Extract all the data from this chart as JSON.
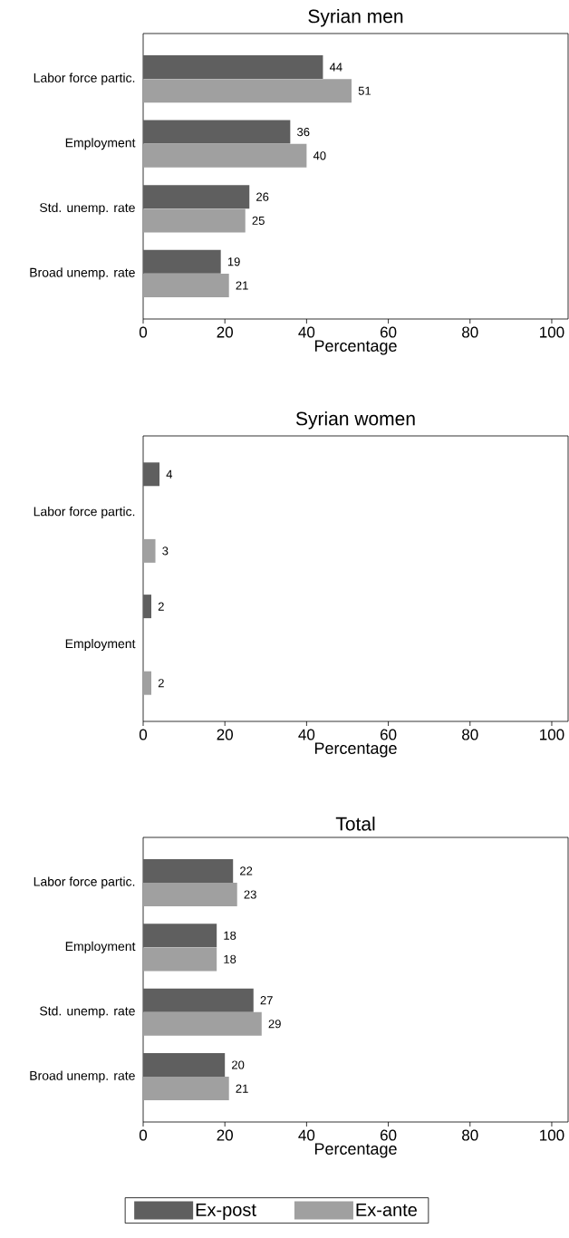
{
  "chart_data": [
    {
      "type": "bar",
      "orientation": "horizontal",
      "title": "Syrian men",
      "xlabel": "Percentage",
      "categories": [
        "Labor force partic.",
        "Employment",
        "Std. unemp. rate",
        "Broad unemp. rate"
      ],
      "series": [
        {
          "color": "#5f5f5f",
          "values": [
            44,
            36,
            26,
            19
          ]
        },
        {
          "color": "#a0a0a0",
          "values": [
            51,
            40,
            25,
            21
          ]
        }
      ],
      "xlim": [
        0,
        104
      ],
      "xticks": [
        0,
        20,
        40,
        60,
        80,
        100
      ],
      "data_labels": true
    },
    {
      "type": "bar",
      "orientation": "horizontal",
      "title": "Syrian women",
      "xlabel": "Percentage",
      "categories": [
        "Labor force partic.",
        "Employment"
      ],
      "series": [
        {
          "color": "#5f5f5f",
          "values": [
            4,
            2
          ]
        },
        {
          "color": "#a0a0a0",
          "values": [
            3,
            2
          ]
        }
      ],
      "xlim": [
        0,
        104
      ],
      "xticks": [
        0,
        20,
        40,
        60,
        80,
        100
      ],
      "data_labels": true
    },
    {
      "type": "bar",
      "orientation": "horizontal",
      "title": "Total",
      "xlabel": "Percentage",
      "categories": [
        "Labor force partic.",
        "Employment",
        "Std. unemp. rate",
        "Broad unemp. rate"
      ],
      "series": [
        {
          "name": "Ex-post",
          "color": "#5f5f5f",
          "values": [
            22,
            18,
            27,
            20
          ]
        },
        {
          "name": "Ex-ante",
          "color": "#a0a0a0",
          "values": [
            23,
            18,
            29,
            21
          ]
        }
      ],
      "xlim": [
        0,
        104
      ],
      "xticks": [
        0,
        20,
        40,
        60,
        80,
        100
      ],
      "data_labels": true,
      "legend": "bottom"
    }
  ]
}
